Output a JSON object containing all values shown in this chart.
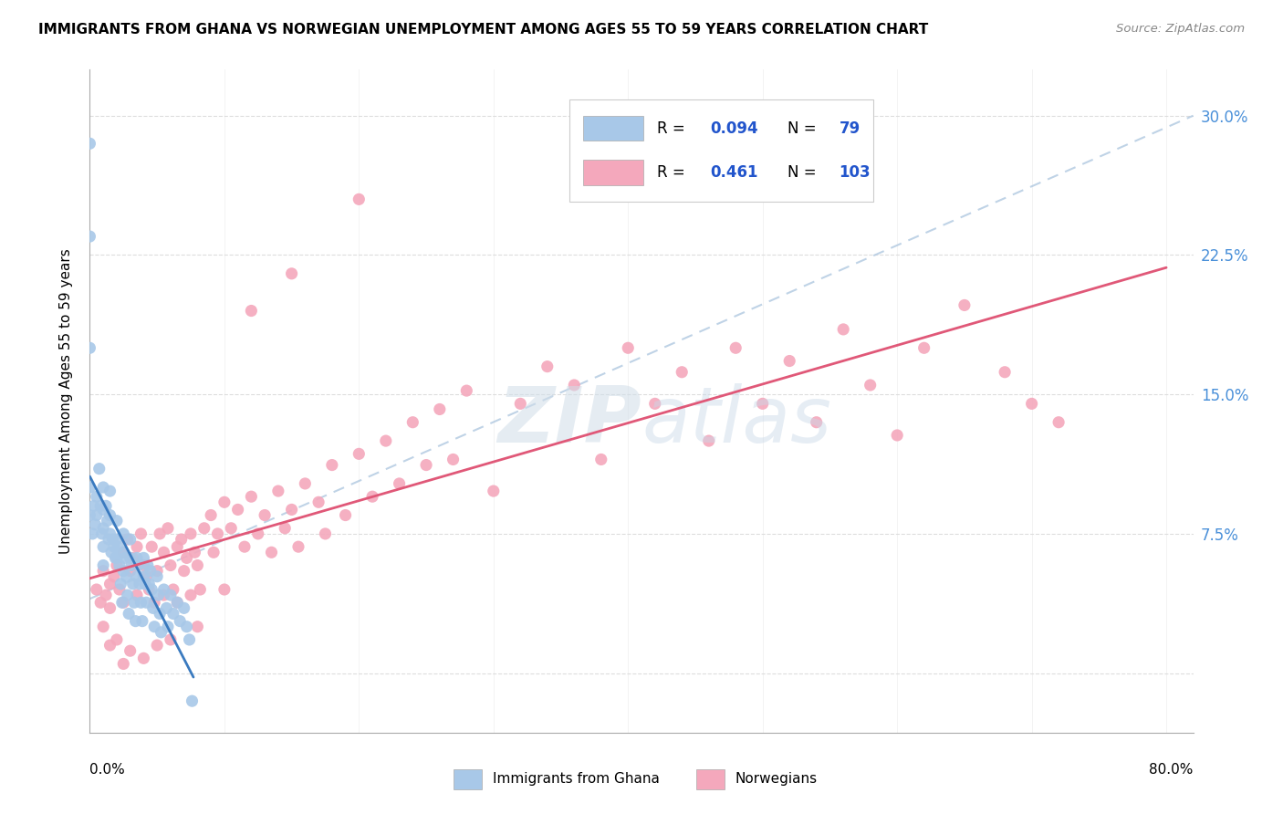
{
  "title": "IMMIGRANTS FROM GHANA VS NORWEGIAN UNEMPLOYMENT AMONG AGES 55 TO 59 YEARS CORRELATION CHART",
  "source": "Source: ZipAtlas.com",
  "ylabel": "Unemployment Among Ages 55 to 59 years",
  "ghana_R": "0.094",
  "ghana_N": "79",
  "norwegian_R": "0.461",
  "norwegian_N": "103",
  "ghana_color": "#a8c8e8",
  "norwegian_color": "#f4a8bc",
  "ghana_line_color": "#3a7abf",
  "norwegian_line_color": "#e05878",
  "dashed_line_color": "#a8c8e8",
  "grid_color": "#dddddd",
  "ytick_color": "#4a90d9",
  "watermark": "ZIPatlas",
  "xlim": [
    0.0,
    0.82
  ],
  "ylim": [
    -0.032,
    0.325
  ],
  "ytick_vals": [
    0.0,
    0.075,
    0.15,
    0.225,
    0.3
  ],
  "ytick_labels": [
    "",
    "7.5%",
    "15.0%",
    "22.5%",
    "30.0%"
  ],
  "ghana_x": [
    0.0,
    0.0,
    0.0,
    0.0,
    0.0,
    0.002,
    0.003,
    0.004,
    0.005,
    0.005,
    0.007,
    0.008,
    0.009,
    0.01,
    0.01,
    0.01,
    0.01,
    0.01,
    0.012,
    0.013,
    0.014,
    0.015,
    0.015,
    0.015,
    0.016,
    0.017,
    0.018,
    0.019,
    0.02,
    0.02,
    0.02,
    0.021,
    0.022,
    0.023,
    0.024,
    0.025,
    0.025,
    0.025,
    0.026,
    0.027,
    0.028,
    0.029,
    0.03,
    0.03,
    0.031,
    0.032,
    0.033,
    0.034,
    0.035,
    0.035,
    0.036,
    0.037,
    0.038,
    0.039,
    0.04,
    0.04,
    0.041,
    0.042,
    0.043,
    0.044,
    0.045,
    0.046,
    0.047,
    0.048,
    0.05,
    0.051,
    0.052,
    0.053,
    0.055,
    0.057,
    0.058,
    0.06,
    0.062,
    0.065,
    0.067,
    0.07,
    0.072,
    0.074,
    0.076
  ],
  "ghana_y": [
    0.285,
    0.235,
    0.175,
    0.1,
    0.085,
    0.075,
    0.09,
    0.08,
    0.095,
    0.085,
    0.11,
    0.09,
    0.075,
    0.1,
    0.088,
    0.078,
    0.068,
    0.058,
    0.09,
    0.082,
    0.072,
    0.098,
    0.085,
    0.075,
    0.065,
    0.072,
    0.068,
    0.062,
    0.082,
    0.072,
    0.062,
    0.068,
    0.058,
    0.048,
    0.038,
    0.075,
    0.065,
    0.055,
    0.062,
    0.052,
    0.042,
    0.032,
    0.072,
    0.062,
    0.058,
    0.048,
    0.038,
    0.028,
    0.062,
    0.052,
    0.058,
    0.048,
    0.038,
    0.028,
    0.062,
    0.052,
    0.048,
    0.038,
    0.058,
    0.048,
    0.055,
    0.045,
    0.035,
    0.025,
    0.052,
    0.042,
    0.032,
    0.022,
    0.045,
    0.035,
    0.025,
    0.042,
    0.032,
    0.038,
    0.028,
    0.035,
    0.025,
    0.018,
    -0.015
  ],
  "norw_x": [
    0.005,
    0.008,
    0.01,
    0.012,
    0.015,
    0.015,
    0.018,
    0.02,
    0.022,
    0.025,
    0.025,
    0.028,
    0.03,
    0.032,
    0.035,
    0.035,
    0.038,
    0.04,
    0.042,
    0.044,
    0.046,
    0.048,
    0.05,
    0.052,
    0.055,
    0.055,
    0.058,
    0.06,
    0.062,
    0.065,
    0.065,
    0.068,
    0.07,
    0.072,
    0.075,
    0.075,
    0.078,
    0.08,
    0.082,
    0.085,
    0.09,
    0.092,
    0.095,
    0.1,
    0.105,
    0.11,
    0.115,
    0.12,
    0.125,
    0.13,
    0.135,
    0.14,
    0.145,
    0.15,
    0.155,
    0.16,
    0.17,
    0.175,
    0.18,
    0.19,
    0.2,
    0.21,
    0.22,
    0.23,
    0.24,
    0.25,
    0.26,
    0.27,
    0.28,
    0.3,
    0.32,
    0.34,
    0.36,
    0.38,
    0.4,
    0.42,
    0.44,
    0.46,
    0.48,
    0.5,
    0.52,
    0.54,
    0.56,
    0.58,
    0.6,
    0.62,
    0.65,
    0.68,
    0.7,
    0.72,
    0.01,
    0.015,
    0.02,
    0.025,
    0.03,
    0.04,
    0.05,
    0.06,
    0.08,
    0.1,
    0.12,
    0.15,
    0.2
  ],
  "norw_y": [
    0.045,
    0.038,
    0.055,
    0.042,
    0.048,
    0.035,
    0.052,
    0.058,
    0.045,
    0.065,
    0.038,
    0.072,
    0.055,
    0.062,
    0.068,
    0.042,
    0.075,
    0.058,
    0.052,
    0.045,
    0.068,
    0.038,
    0.055,
    0.075,
    0.065,
    0.042,
    0.078,
    0.058,
    0.045,
    0.068,
    0.038,
    0.072,
    0.055,
    0.062,
    0.075,
    0.042,
    0.065,
    0.058,
    0.045,
    0.078,
    0.085,
    0.065,
    0.075,
    0.092,
    0.078,
    0.088,
    0.068,
    0.095,
    0.075,
    0.085,
    0.065,
    0.098,
    0.078,
    0.088,
    0.068,
    0.102,
    0.092,
    0.075,
    0.112,
    0.085,
    0.118,
    0.095,
    0.125,
    0.102,
    0.135,
    0.112,
    0.142,
    0.115,
    0.152,
    0.098,
    0.145,
    0.165,
    0.155,
    0.115,
    0.175,
    0.145,
    0.162,
    0.125,
    0.175,
    0.145,
    0.168,
    0.135,
    0.185,
    0.155,
    0.128,
    0.175,
    0.198,
    0.162,
    0.145,
    0.135,
    0.025,
    0.015,
    0.018,
    0.005,
    0.012,
    0.008,
    0.015,
    0.018,
    0.025,
    0.045,
    0.195,
    0.215,
    0.255
  ],
  "legend_R_color": "#2255cc",
  "legend_text_color": "#2255cc"
}
